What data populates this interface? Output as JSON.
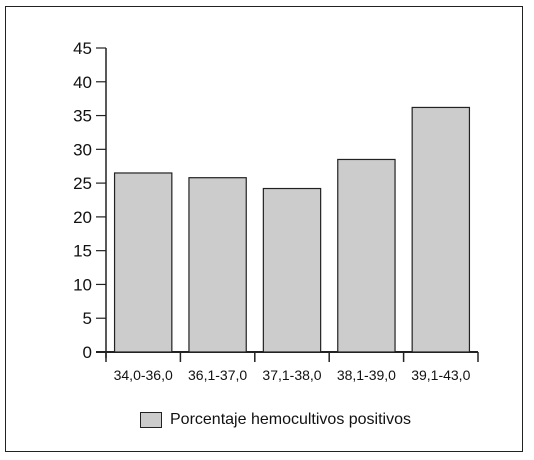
{
  "chart_data": {
    "type": "bar",
    "categories": [
      "34,0-36,0",
      "36,1-37,0",
      "37,1-38,0",
      "38,1-39,0",
      "39,1-43,0"
    ],
    "series": [
      {
        "name": "Porcentaje hemocultivos positivos",
        "values": [
          26.5,
          25.8,
          24.2,
          28.5,
          36.2
        ]
      }
    ],
    "y_ticks": [
      "0",
      "5",
      "10",
      "15",
      "20",
      "25",
      "30",
      "35",
      "40",
      "45"
    ],
    "ylim": [
      0,
      45
    ],
    "bar_color": "#cccccc",
    "edge_color": "#222222",
    "grid": false,
    "legend_position": "bottom"
  }
}
